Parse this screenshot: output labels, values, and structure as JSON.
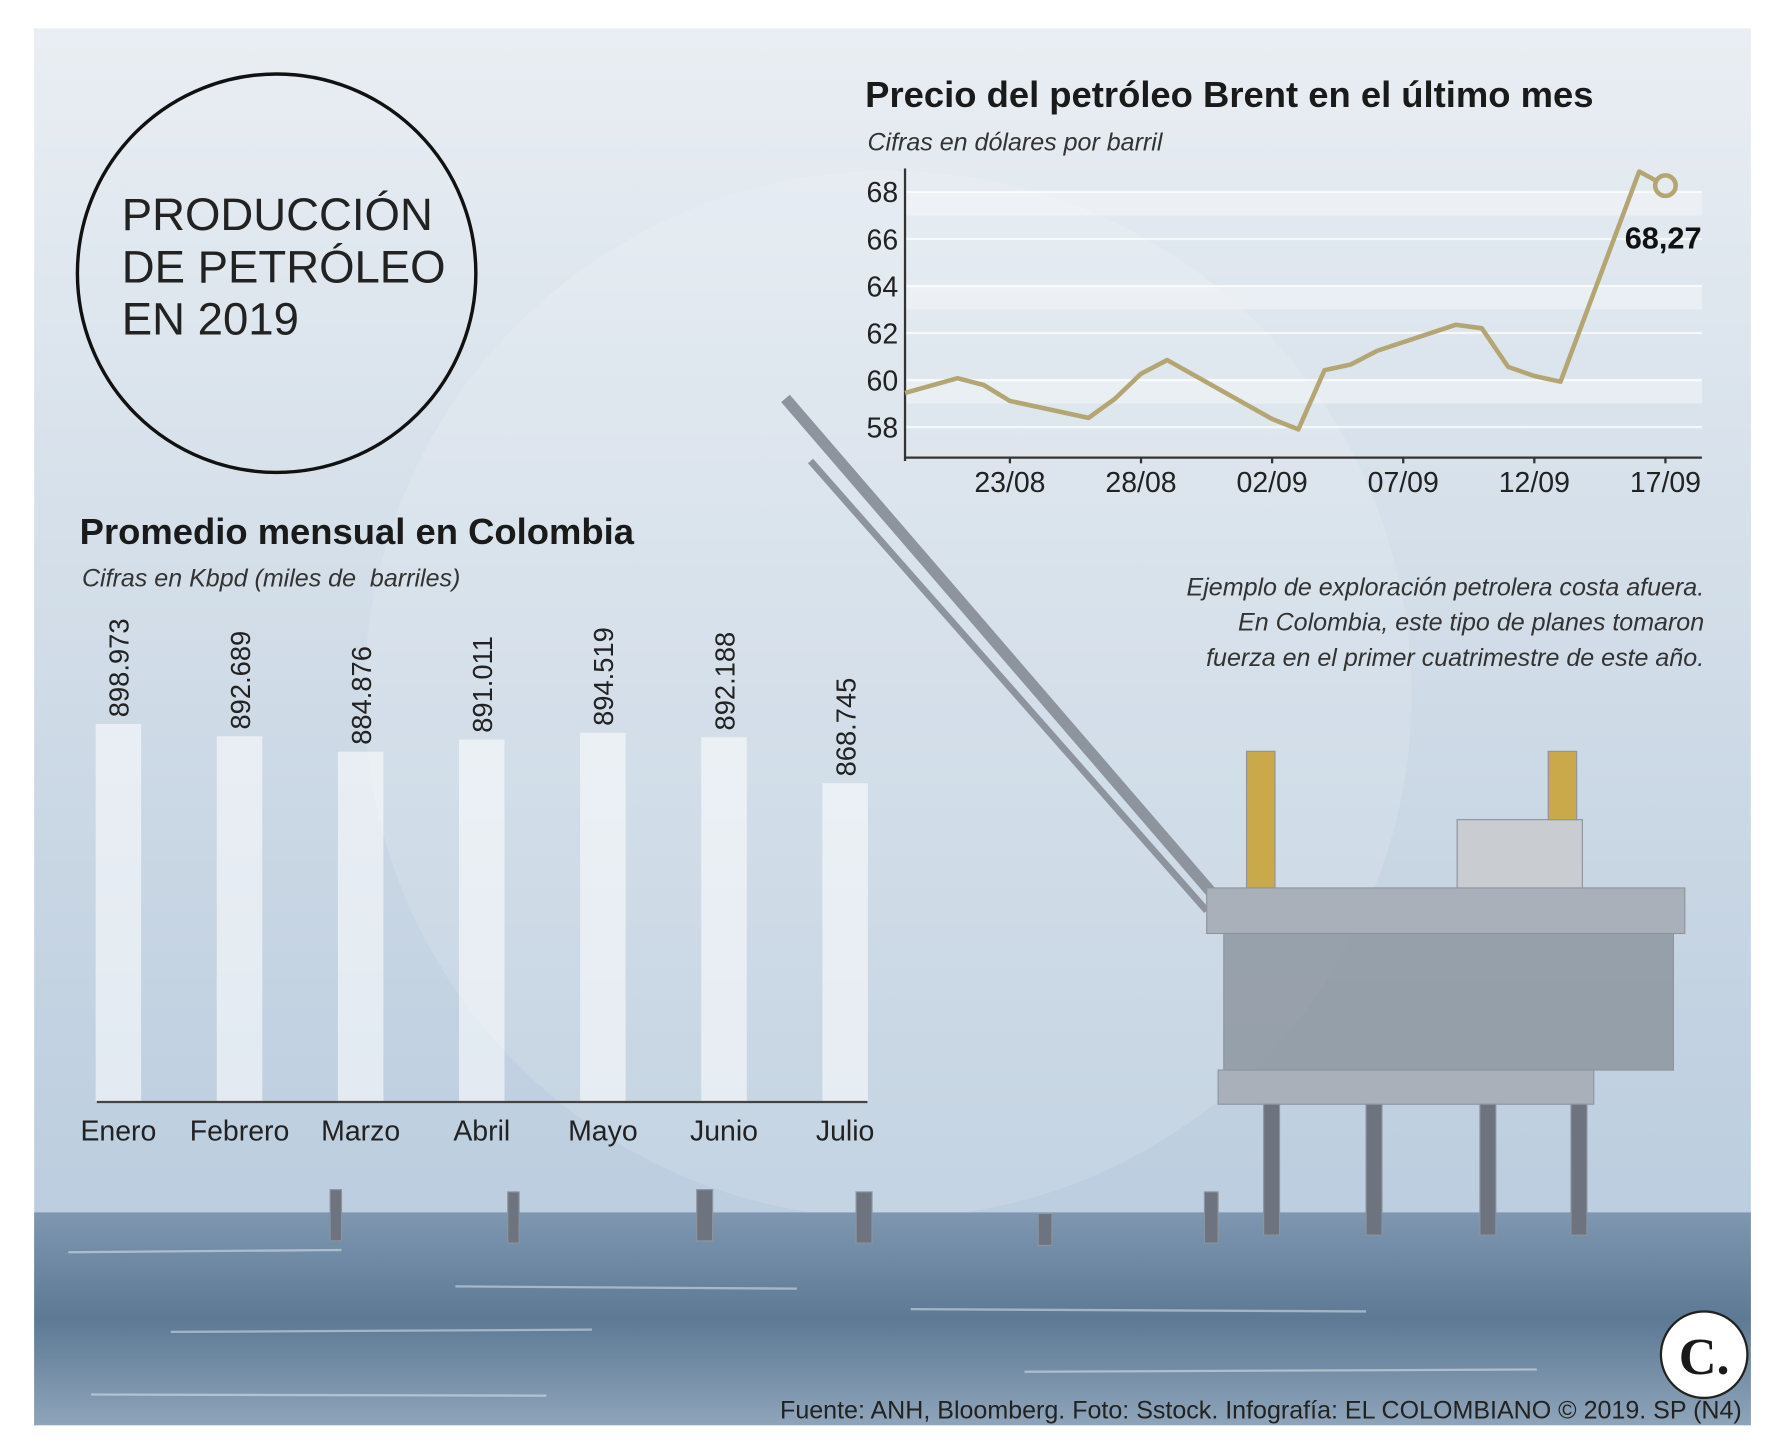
{
  "header": {
    "title_lines": [
      "PRODUCCIÓN",
      "DE PETRÓLEO",
      "EN 2019"
    ]
  },
  "chart_data": [
    {
      "type": "bar",
      "title": "Promedio mensual en Colombia",
      "subtitle": "Cifras en Kbpd (miles de  barriles)",
      "categories": [
        "Enero",
        "Febrero",
        "Marzo",
        "Abril",
        "Mayo",
        "Junio",
        "Julio"
      ],
      "values": [
        898973,
        892689,
        884876,
        891011,
        894519,
        892188,
        868745
      ],
      "value_labels": [
        "898.973",
        "892.689",
        "884.876",
        "891.011",
        "894.519",
        "892.188",
        "868.745"
      ],
      "color": "#ffffff"
    },
    {
      "type": "line",
      "title": "Precio del petróleo Brent en el último mes",
      "subtitle": "Cifras en dólares por barril",
      "x": [
        "19/08",
        "21/08",
        "22/08",
        "23/08",
        "26/08",
        "27/08",
        "28/08",
        "29/08",
        "02/09",
        "03/09",
        "04/09",
        "05/09",
        "06/09",
        "09/09",
        "10/09",
        "11/09",
        "12/09",
        "13/09",
        "16/09",
        "17/09"
      ],
      "values": [
        59.45,
        60.08,
        59.79,
        59.11,
        58.39,
        59.2,
        60.27,
        60.85,
        58.34,
        57.9,
        60.42,
        60.66,
        61.24,
        62.35,
        62.2,
        60.56,
        60.17,
        59.93,
        68.87,
        68.27
      ],
      "value_labels": [
        null,
        null,
        null,
        null,
        null,
        null,
        null,
        null,
        null,
        null,
        null,
        null,
        null,
        null,
        null,
        null,
        null,
        null,
        null,
        "68,27"
      ],
      "color": "#b3a672",
      "xlim": [
        "19/08",
        "18/09"
      ],
      "xticks": [
        "23/08",
        "28/08",
        "02/09",
        "07/09",
        "12/09",
        "17/09"
      ],
      "ylim": [
        56.7,
        69.0
      ],
      "yticks": [
        58,
        60,
        62,
        64,
        66,
        68
      ],
      "grid": true
    }
  ],
  "caption": [
    "Ejemplo de exploración petrolera costa afuera.",
    "En Colombia, este tipo de planes tomaron",
    "fuerza en el primer cuatrimestre de este año."
  ],
  "source": "Fuente: ANH, Bloomberg. Foto: Sstock. Infografía: EL COLOMBIANO © 2019. SP (N4)",
  "logo": "C."
}
